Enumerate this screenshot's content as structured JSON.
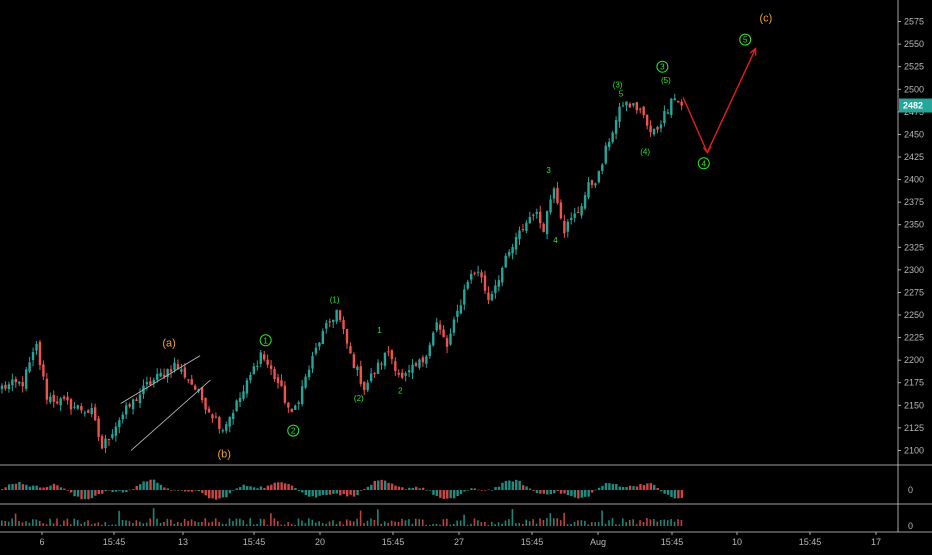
{
  "chart_data": {
    "type": "candlestick",
    "y_axis": {
      "ticks": [
        2100,
        2125,
        2150,
        2175,
        2200,
        2225,
        2250,
        2275,
        2300,
        2325,
        2350,
        2375,
        2400,
        2425,
        2450,
        2475,
        2500,
        2525,
        2550,
        2575
      ],
      "ylim": [
        2085,
        2590
      ]
    },
    "x_axis": {
      "tick_labels": [
        "6",
        "15:45",
        "13",
        "15:45",
        "20",
        "15:45",
        "27",
        "15:45",
        "Aug",
        "15:45",
        "10",
        "15:45",
        "17"
      ]
    },
    "last_price": {
      "label": "2482",
      "value": 2482,
      "color": "#26a69a"
    },
    "price_anchors": [
      {
        "i": 0,
        "v": 2170
      },
      {
        "i": 6,
        "v": 2175
      },
      {
        "i": 10,
        "v": 2215
      },
      {
        "i": 13,
        "v": 2160
      },
      {
        "i": 20,
        "v": 2150
      },
      {
        "i": 26,
        "v": 2142
      },
      {
        "i": 29,
        "v": 2103
      },
      {
        "i": 34,
        "v": 2135
      },
      {
        "i": 42,
        "v": 2172
      },
      {
        "i": 50,
        "v": 2195
      },
      {
        "i": 54,
        "v": 2180
      },
      {
        "i": 60,
        "v": 2145
      },
      {
        "i": 64,
        "v": 2125
      },
      {
        "i": 70,
        "v": 2165
      },
      {
        "i": 75,
        "v": 2208
      },
      {
        "i": 80,
        "v": 2175
      },
      {
        "i": 84,
        "v": 2138
      },
      {
        "i": 92,
        "v": 2222
      },
      {
        "i": 97,
        "v": 2255
      },
      {
        "i": 101,
        "v": 2205
      },
      {
        "i": 105,
        "v": 2170
      },
      {
        "i": 112,
        "v": 2210
      },
      {
        "i": 116,
        "v": 2178
      },
      {
        "i": 122,
        "v": 2200
      },
      {
        "i": 126,
        "v": 2240
      },
      {
        "i": 129,
        "v": 2215
      },
      {
        "i": 135,
        "v": 2290
      },
      {
        "i": 138,
        "v": 2300
      },
      {
        "i": 141,
        "v": 2268
      },
      {
        "i": 146,
        "v": 2310
      },
      {
        "i": 150,
        "v": 2340
      },
      {
        "i": 154,
        "v": 2365
      },
      {
        "i": 157,
        "v": 2348
      },
      {
        "i": 160,
        "v": 2395
      },
      {
        "i": 163,
        "v": 2345
      },
      {
        "i": 167,
        "v": 2365
      },
      {
        "i": 170,
        "v": 2392
      },
      {
        "i": 173,
        "v": 2405
      },
      {
        "i": 176,
        "v": 2445
      },
      {
        "i": 180,
        "v": 2485
      },
      {
        "i": 185,
        "v": 2478
      },
      {
        "i": 188,
        "v": 2450
      },
      {
        "i": 190,
        "v": 2458
      },
      {
        "i": 193,
        "v": 2480
      },
      {
        "i": 194,
        "v": 2494
      },
      {
        "i": 197,
        "v": 2482
      }
    ],
    "wave_labels": [
      {
        "text": "(a)",
        "t": 49,
        "v": 2215,
        "style": "orange"
      },
      {
        "text": "(b)",
        "t": 65,
        "v": 2092,
        "style": "orange"
      },
      {
        "text": "(c)",
        "t": 222,
        "v": 2575,
        "style": "orange"
      },
      {
        "text": "1",
        "t": 77,
        "v": 2222,
        "style": "green-circle"
      },
      {
        "text": "2",
        "t": 85,
        "v": 2122,
        "style": "green-circle"
      },
      {
        "text": "3",
        "t": 192,
        "v": 2525,
        "style": "green-circle"
      },
      {
        "text": "4",
        "t": 204,
        "v": 2418,
        "style": "green-circle"
      },
      {
        "text": "5",
        "t": 216,
        "v": 2555,
        "style": "green-circle"
      },
      {
        "text": "(1)",
        "t": 97,
        "v": 2264,
        "style": "green"
      },
      {
        "text": "(2)",
        "t": 104,
        "v": 2155,
        "style": "green"
      },
      {
        "text": "(3)",
        "t": 179,
        "v": 2502,
        "style": "green"
      },
      {
        "text": "(4)",
        "t": 187,
        "v": 2428,
        "style": "green"
      },
      {
        "text": "(5)",
        "t": 193,
        "v": 2507,
        "style": "green"
      },
      {
        "text": "1",
        "t": 110,
        "v": 2230,
        "style": "green"
      },
      {
        "text": "2",
        "t": 116,
        "v": 2163,
        "style": "green"
      },
      {
        "text": "3",
        "t": 159,
        "v": 2407,
        "style": "green"
      },
      {
        "text": "4",
        "t": 161,
        "v": 2330,
        "style": "green"
      },
      {
        "text": "5",
        "t": 180,
        "v": 2492,
        "style": "green"
      }
    ],
    "projection_path": [
      {
        "t": 198,
        "v": 2491
      },
      {
        "t": 205,
        "v": 2430
      },
      {
        "t": 219,
        "v": 2545
      }
    ],
    "channel": {
      "upper": [
        {
          "t": 35,
          "v": 2152
        },
        {
          "t": 58,
          "v": 2205
        }
      ],
      "lower": [
        {
          "t": 38,
          "v": 2100
        },
        {
          "t": 61,
          "v": 2178
        }
      ]
    },
    "oscillator_panel": {
      "zero_label": "0"
    },
    "volume_panel": {
      "zero_label": "0"
    }
  }
}
